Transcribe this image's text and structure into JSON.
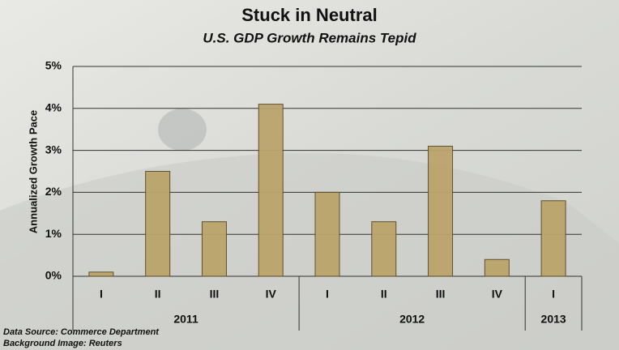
{
  "chart_data": {
    "type": "bar",
    "title": "Stuck in Neutral",
    "subtitle": "U.S. GDP Growth Remains Tepid",
    "y_label": "Annualized Growth Pace",
    "groups": [
      {
        "name": "2011",
        "categories": [
          "I",
          "II",
          "III",
          "IV"
        ]
      },
      {
        "name": "2012",
        "categories": [
          "I",
          "II",
          "III",
          "IV"
        ]
      },
      {
        "name": "2013",
        "categories": [
          "I"
        ]
      }
    ],
    "values": [
      0.1,
      2.5,
      1.3,
      4.1,
      2.0,
      1.3,
      3.1,
      0.4,
      1.8
    ],
    "color": "#bba46c",
    "ylim": [
      0,
      5
    ],
    "yticks": [
      {
        "value": 0,
        "label": "0%"
      },
      {
        "value": 1,
        "label": "1%"
      },
      {
        "value": 2,
        "label": "2%"
      },
      {
        "value": 3,
        "label": "3%"
      },
      {
        "value": 4,
        "label": "4%"
      },
      {
        "value": 5,
        "label": "5%"
      }
    ],
    "grid": true,
    "notes": [
      "Data Source: Commerce Department",
      "Background Image: Reuters"
    ]
  }
}
